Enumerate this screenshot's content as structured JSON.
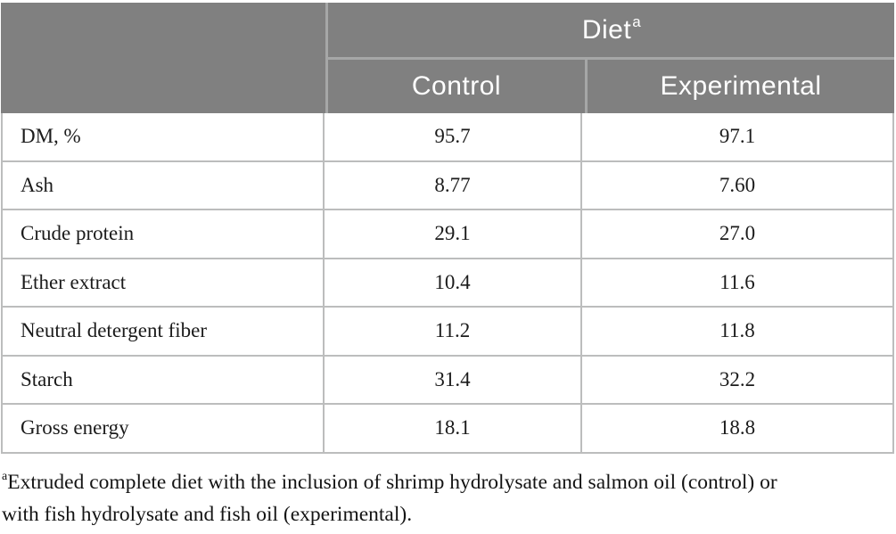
{
  "table": {
    "header": {
      "group_label": "Diet",
      "group_superscript": "a",
      "col_control": "Control",
      "col_experimental": "Experimental"
    },
    "rows": [
      {
        "label": "DM, %",
        "control": "95.7",
        "experimental": "97.1"
      },
      {
        "label": "Ash",
        "control": "8.77",
        "experimental": "7.60"
      },
      {
        "label": "Crude protein",
        "control": "29.1",
        "experimental": "27.0"
      },
      {
        "label": "Ether extract",
        "control": "10.4",
        "experimental": "11.6"
      },
      {
        "label": "Neutral detergent fiber",
        "control": "11.2",
        "experimental": "11.8"
      },
      {
        "label": "Starch",
        "control": "31.4",
        "experimental": "32.2"
      },
      {
        "label": "Gross energy",
        "control": "18.1",
        "experimental": "18.8"
      }
    ],
    "footnote": {
      "superscript": "a",
      "line1": "Extruded complete diet with the inclusion of shrimp hydrolysate and salmon oil (control) or",
      "line2": "with fish hydrolysate and fish oil (experimental).",
      "full_text": "aExtruded complete diet with the inclusion of shrimp hydrolysate and salmon oil (control) or with fish hydrolysate and fish oil (experimental)."
    }
  },
  "colors": {
    "header_bg": "#808080",
    "header_text": "#ffffff",
    "header_divider": "#a6a7a7",
    "body_border": "#bcbdbd",
    "body_text": "#1b1b1b"
  }
}
